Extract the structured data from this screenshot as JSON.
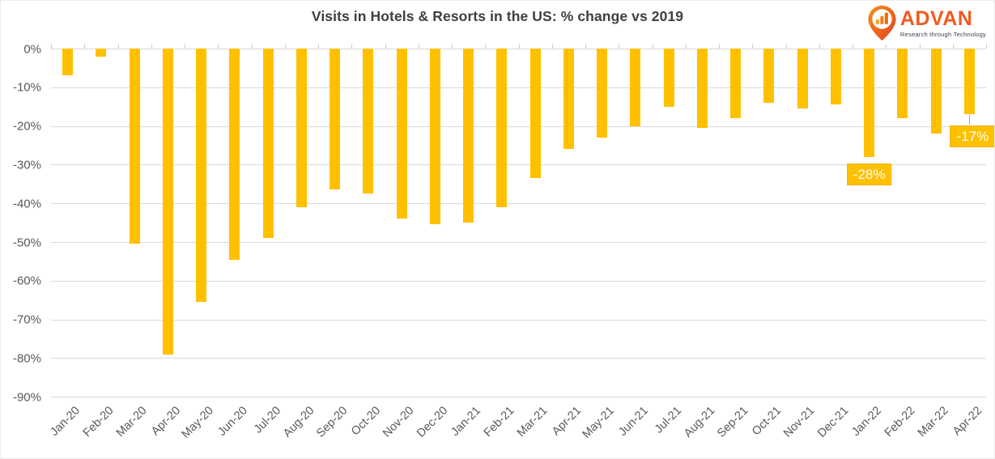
{
  "title": "Visits in Hotels & Resorts in the US: % change vs 2019",
  "logo": {
    "name": "ADVAN",
    "tagline": "Research through Technology",
    "brand_orange": "#f1591f",
    "pin_gradient": [
      "#f7941e",
      "#e23e1d"
    ],
    "tagline_color": "#3d3d52"
  },
  "chart_data": {
    "type": "bar",
    "title": "Visits in Hotels & Resorts in the US: % change vs 2019",
    "xlabel": "",
    "ylabel": "",
    "ylim": [
      -90,
      0
    ],
    "grid": true,
    "legend": "none",
    "bar_color": "#ffc000",
    "grid_color": "#d9d9d9",
    "axis_text_color": "#595959",
    "y_ticks": [
      "0%",
      "-10%",
      "-20%",
      "-30%",
      "-40%",
      "-50%",
      "-60%",
      "-70%",
      "-80%",
      "-90%"
    ],
    "categories": [
      "Jan-20",
      "Feb-20",
      "Mar-20",
      "Apr-20",
      "May-20",
      "Jun-20",
      "Jul-20",
      "Aug-20",
      "Sep-20",
      "Oct-20",
      "Nov-20",
      "Dec-20",
      "Jan-21",
      "Feb-21",
      "Mar-21",
      "Apr-21",
      "May-21",
      "Jun-21",
      "Jul-21",
      "Aug-21",
      "Sep-21",
      "Oct-21",
      "Nov-21",
      "Dec-21",
      "Jan-22",
      "Feb-22",
      "Mar-22",
      "Apr-22"
    ],
    "values": [
      -7,
      -2,
      -50.5,
      -79,
      -65.5,
      -54.5,
      -49,
      -41,
      -36.5,
      -37.5,
      -44,
      -45.5,
      -45,
      -41,
      -33.5,
      -26,
      -23,
      -20,
      -15,
      -20.5,
      -18,
      -14,
      -15.5,
      -14.5,
      -28,
      -18,
      -22,
      -17
    ],
    "data_labels": [
      {
        "category": "Jan-22",
        "text": "-28%",
        "leader": false
      },
      {
        "category": "Apr-22",
        "text": "-17%",
        "leader": true
      }
    ]
  }
}
